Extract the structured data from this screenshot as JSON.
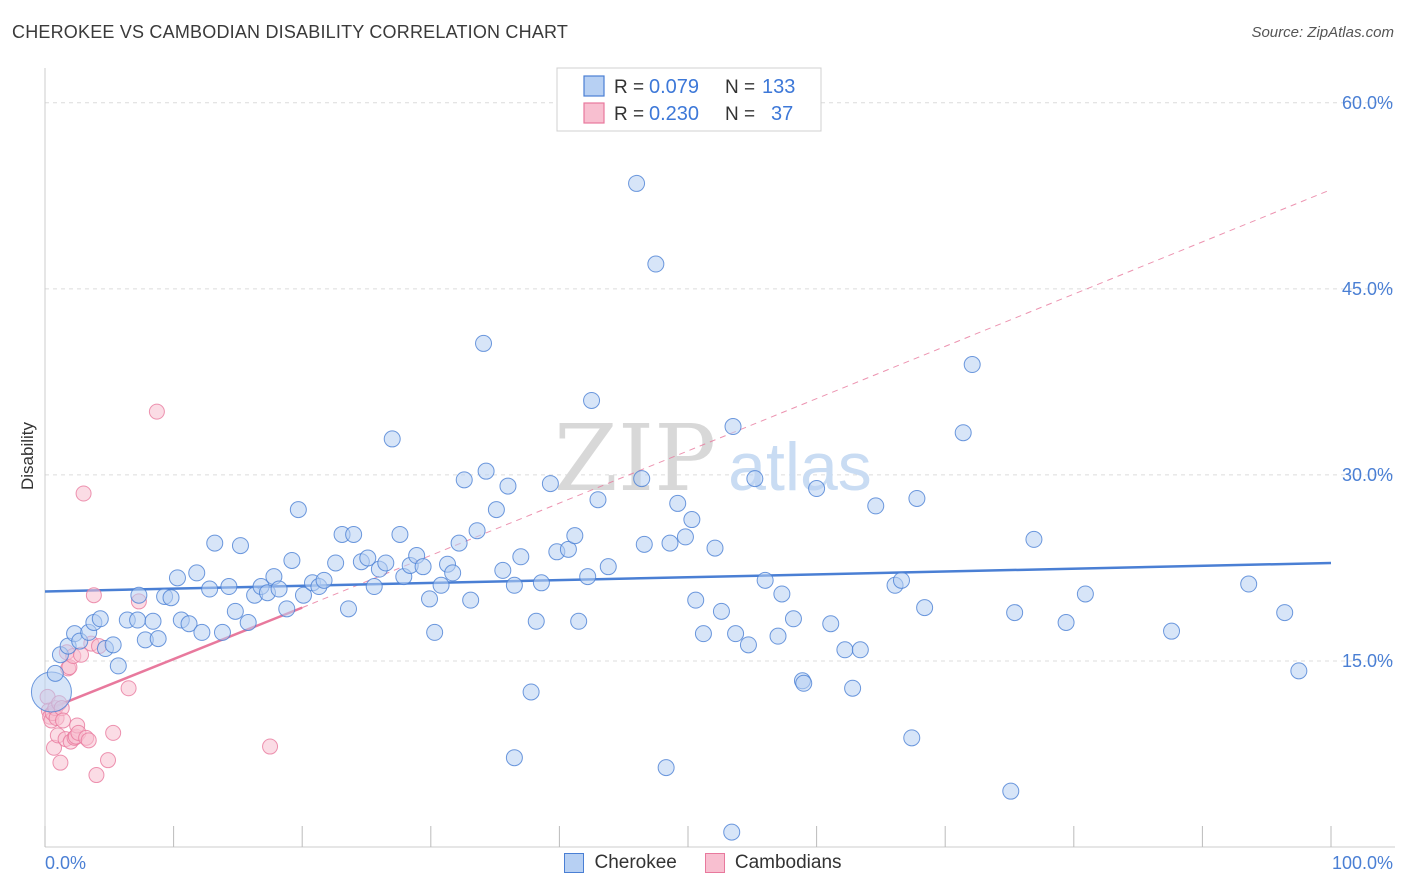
{
  "header": {
    "title": "CHEROKEE VS CAMBODIAN DISABILITY CORRELATION CHART",
    "source": "Source: ZipAtlas.com"
  },
  "colors": {
    "blue": "#4a7fd4",
    "blue_fill": "#b7d0f3",
    "pink": "#e8799d",
    "pink_fill": "#f8bfd0",
    "grid": "#dcdcdc"
  },
  "watermark": {
    "zip": "ZIP",
    "atlas": "atlas"
  },
  "legend": {
    "series1": {
      "r_label": "R =",
      "r_value": "0.079",
      "n_label": "N =",
      "n_value": "133"
    },
    "series2": {
      "r_label": "R =",
      "r_value": "0.230",
      "n_label": "N =",
      "n_value": "37"
    }
  },
  "bottom_legend": {
    "cherokee": "Cherokee",
    "cambodians": "Cambodians"
  },
  "chart_data": {
    "type": "scatter",
    "title": "CHEROKEE VS CAMBODIAN DISABILITY CORRELATION CHART",
    "xlabel": "",
    "ylabel": "Disability",
    "xlim": [
      0,
      100
    ],
    "ylim": [
      0,
      62
    ],
    "x_tick_labels": [
      "0.0%",
      "100.0%"
    ],
    "y_ticks": [
      15,
      30,
      45,
      60
    ],
    "y_tick_labels": [
      "15.0%",
      "30.0%",
      "45.0%",
      "60.0%"
    ],
    "legend_position": "top-center",
    "series": [
      {
        "name": "Cherokee",
        "r": 0.079,
        "n": 133,
        "trend": {
          "x": [
            0,
            100
          ],
          "y": [
            20.6,
            22.9
          ],
          "style": "solid"
        },
        "points": [
          [
            0.5,
            12.5
          ],
          [
            0.8,
            14.0
          ],
          [
            1.2,
            15.5
          ],
          [
            1.8,
            16.2
          ],
          [
            2.3,
            17.2
          ],
          [
            2.7,
            16.6
          ],
          [
            3.4,
            17.3
          ],
          [
            3.8,
            18.1
          ],
          [
            4.3,
            18.4
          ],
          [
            4.7,
            16.0
          ],
          [
            5.3,
            16.3
          ],
          [
            5.7,
            14.6
          ],
          [
            6.4,
            18.3
          ],
          [
            7.2,
            18.3
          ],
          [
            7.3,
            20.3
          ],
          [
            7.8,
            16.7
          ],
          [
            8.4,
            18.2
          ],
          [
            8.8,
            16.8
          ],
          [
            9.3,
            20.2
          ],
          [
            9.8,
            20.1
          ],
          [
            10.3,
            21.7
          ],
          [
            10.6,
            18.3
          ],
          [
            11.2,
            18.0
          ],
          [
            11.8,
            22.1
          ],
          [
            12.2,
            17.3
          ],
          [
            12.8,
            20.8
          ],
          [
            13.2,
            24.5
          ],
          [
            13.8,
            17.3
          ],
          [
            14.3,
            21.0
          ],
          [
            14.8,
            19.0
          ],
          [
            15.2,
            24.3
          ],
          [
            15.8,
            18.1
          ],
          [
            16.3,
            20.3
          ],
          [
            16.8,
            21.0
          ],
          [
            17.3,
            20.5
          ],
          [
            17.8,
            21.8
          ],
          [
            18.2,
            20.8
          ],
          [
            18.8,
            19.2
          ],
          [
            19.2,
            23.1
          ],
          [
            19.7,
            27.2
          ],
          [
            20.1,
            20.3
          ],
          [
            20.8,
            21.3
          ],
          [
            21.3,
            21.0
          ],
          [
            21.7,
            21.5
          ],
          [
            22.6,
            22.9
          ],
          [
            23.1,
            25.2
          ],
          [
            23.6,
            19.2
          ],
          [
            24.0,
            25.2
          ],
          [
            24.6,
            23.0
          ],
          [
            25.1,
            23.3
          ],
          [
            25.6,
            21.0
          ],
          [
            26.0,
            22.4
          ],
          [
            26.5,
            22.9
          ],
          [
            27.0,
            32.9
          ],
          [
            27.6,
            25.2
          ],
          [
            27.9,
            21.8
          ],
          [
            28.4,
            22.7
          ],
          [
            28.9,
            23.5
          ],
          [
            29.4,
            22.6
          ],
          [
            29.9,
            20.0
          ],
          [
            30.3,
            17.3
          ],
          [
            30.8,
            21.1
          ],
          [
            31.3,
            22.8
          ],
          [
            31.7,
            22.1
          ],
          [
            32.2,
            24.5
          ],
          [
            32.6,
            29.6
          ],
          [
            33.1,
            19.9
          ],
          [
            33.6,
            25.5
          ],
          [
            34.1,
            40.6
          ],
          [
            34.3,
            30.3
          ],
          [
            35.1,
            27.2
          ],
          [
            35.6,
            22.3
          ],
          [
            36.0,
            29.1
          ],
          [
            36.5,
            21.1
          ],
          [
            37.0,
            23.4
          ],
          [
            37.8,
            12.5
          ],
          [
            38.2,
            18.2
          ],
          [
            38.6,
            21.3
          ],
          [
            39.3,
            29.3
          ],
          [
            39.8,
            23.8
          ],
          [
            40.7,
            24.0
          ],
          [
            41.2,
            25.1
          ],
          [
            41.5,
            18.2
          ],
          [
            42.2,
            21.8
          ],
          [
            42.5,
            36.0
          ],
          [
            43.0,
            28.0
          ],
          [
            43.8,
            22.6
          ],
          [
            46.0,
            53.5
          ],
          [
            46.6,
            24.4
          ],
          [
            46.4,
            29.7
          ],
          [
            47.5,
            47.0
          ],
          [
            48.6,
            24.5
          ],
          [
            49.2,
            27.7
          ],
          [
            49.8,
            25.0
          ],
          [
            50.3,
            26.4
          ],
          [
            50.6,
            19.9
          ],
          [
            51.2,
            17.2
          ],
          [
            52.1,
            24.1
          ],
          [
            52.6,
            19.0
          ],
          [
            53.5,
            33.9
          ],
          [
            53.7,
            17.2
          ],
          [
            54.7,
            16.3
          ],
          [
            55.2,
            29.7
          ],
          [
            56.0,
            21.5
          ],
          [
            57.0,
            17.0
          ],
          [
            57.3,
            20.4
          ],
          [
            58.2,
            18.4
          ],
          [
            58.9,
            13.4
          ],
          [
            59.0,
            13.2
          ],
          [
            60.0,
            28.9
          ],
          [
            61.1,
            18.0
          ],
          [
            62.2,
            15.9
          ],
          [
            62.8,
            12.8
          ],
          [
            63.4,
            15.9
          ],
          [
            64.6,
            27.5
          ],
          [
            66.1,
            21.1
          ],
          [
            66.6,
            21.5
          ],
          [
            67.4,
            8.8
          ],
          [
            67.8,
            28.1
          ],
          [
            68.4,
            19.3
          ],
          [
            71.4,
            33.4
          ],
          [
            72.1,
            38.9
          ],
          [
            75.1,
            4.5
          ],
          [
            75.4,
            18.9
          ],
          [
            76.9,
            24.8
          ],
          [
            79.4,
            18.1
          ],
          [
            80.9,
            20.4
          ],
          [
            87.6,
            17.4
          ],
          [
            93.6,
            21.2
          ],
          [
            96.4,
            18.9
          ],
          [
            97.5,
            14.2
          ],
          [
            36.5,
            7.2
          ],
          [
            48.3,
            6.4
          ],
          [
            53.4,
            1.2
          ]
        ]
      },
      {
        "name": "Cambodians",
        "r": 0.23,
        "n": 37,
        "trend": {
          "x": [
            0,
            20
          ],
          "y": [
            11.0,
            19.3
          ],
          "style": "solid"
        },
        "trend_extension": {
          "x": [
            20,
            100
          ],
          "y": [
            19.3,
            53.0
          ],
          "style": "dashed"
        },
        "points": [
          [
            0.2,
            12.1
          ],
          [
            0.3,
            11.0
          ],
          [
            0.4,
            10.5
          ],
          [
            0.5,
            10.2
          ],
          [
            0.6,
            10.8
          ],
          [
            0.7,
            8.0
          ],
          [
            0.8,
            11.2
          ],
          [
            0.9,
            10.4
          ],
          [
            1.0,
            9.0
          ],
          [
            1.1,
            11.6
          ],
          [
            1.2,
            6.8
          ],
          [
            1.3,
            11.2
          ],
          [
            1.4,
            10.2
          ],
          [
            1.6,
            8.7
          ],
          [
            1.7,
            15.7
          ],
          [
            1.8,
            14.4
          ],
          [
            1.9,
            14.5
          ],
          [
            2.0,
            8.5
          ],
          [
            2.2,
            15.4
          ],
          [
            2.3,
            8.8
          ],
          [
            2.4,
            8.9
          ],
          [
            2.5,
            9.8
          ],
          [
            2.6,
            9.2
          ],
          [
            2.8,
            15.5
          ],
          [
            3.0,
            28.5
          ],
          [
            3.2,
            8.8
          ],
          [
            3.4,
            8.6
          ],
          [
            3.6,
            16.4
          ],
          [
            3.8,
            20.3
          ],
          [
            4.0,
            5.8
          ],
          [
            4.2,
            16.2
          ],
          [
            4.9,
            7.0
          ],
          [
            5.3,
            9.2
          ],
          [
            6.5,
            12.8
          ],
          [
            7.3,
            19.8
          ],
          [
            8.7,
            35.1
          ],
          [
            17.5,
            8.1
          ]
        ]
      }
    ]
  }
}
